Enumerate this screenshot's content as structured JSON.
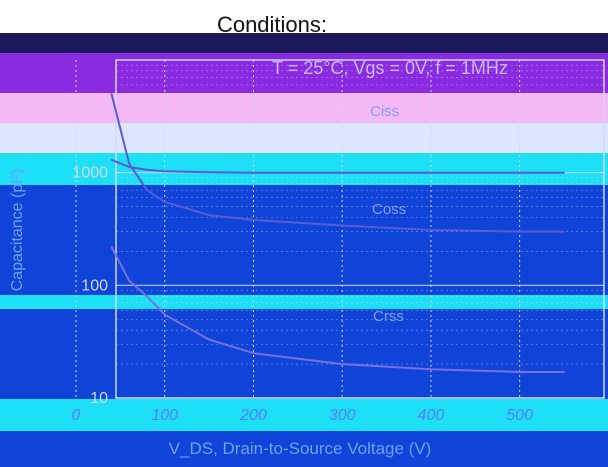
{
  "header": {
    "conditions_label": "Conditions:",
    "conditions_text": "T = 25°C, Vgs = 0V, f = 1MHz"
  },
  "chart_data": {
    "type": "line",
    "title": "",
    "xlabel": "V_DS, Drain-to-Source Voltage (V)",
    "ylabel": "Capacitance (pF)",
    "xlim": [
      0,
      550
    ],
    "ylim": [
      10,
      10000
    ],
    "yscale": "log",
    "grid": true,
    "x_ticks": [
      "0",
      "100",
      "200",
      "300",
      "400",
      "500"
    ],
    "y_ticks": [
      "1000",
      "100",
      "10"
    ],
    "series": [
      {
        "name": "Ciss",
        "x": [
          40,
          60,
          80,
          100,
          150,
          200,
          300,
          400,
          500,
          550
        ],
        "values": [
          1300,
          1120,
          1060,
          1030,
          1010,
          1000,
          1000,
          1000,
          1000,
          1000
        ]
      },
      {
        "name": "Coss",
        "x": [
          40,
          60,
          80,
          100,
          150,
          200,
          300,
          400,
          500,
          550
        ],
        "values": [
          5000,
          1200,
          700,
          550,
          420,
          380,
          340,
          310,
          300,
          300
        ]
      },
      {
        "name": "Crss",
        "x": [
          40,
          60,
          80,
          100,
          150,
          200,
          300,
          400,
          500,
          550
        ],
        "values": [
          220,
          110,
          80,
          55,
          33,
          25,
          20,
          18,
          17,
          17
        ]
      }
    ],
    "colors": {
      "ciss": "#5b5bd6",
      "coss": "#5b5bd6",
      "crss": "#7a6fe0",
      "plot_bg": "#1043d8",
      "band_cyan": "#1de0f6",
      "band_purple": "#8a2be2",
      "band_pink": "#f5b8f5",
      "band_white": "#dde6ff",
      "grid": "#c8d8ff",
      "axis_text": "#cfd8ff"
    }
  }
}
